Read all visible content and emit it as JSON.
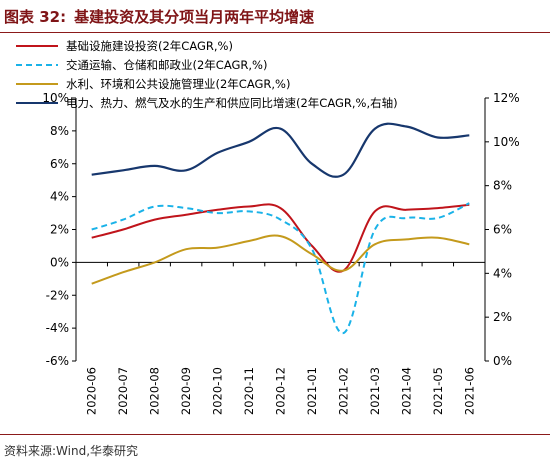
{
  "header": {
    "figure_no": "图表 32:",
    "title": "基建投资及其分项当月两年平均增速"
  },
  "source": "资料来源:Wind,华泰研究",
  "chart_data": {
    "type": "line",
    "categories": [
      "2020-06",
      "2020-07",
      "2020-08",
      "2020-09",
      "2020-10",
      "2020-11",
      "2020-12",
      "2021-01",
      "2021-02",
      "2021-03",
      "2021-04",
      "2021-05",
      "2021-06"
    ],
    "y_left": {
      "min": -6,
      "max": 10,
      "ticks": [
        "-6%",
        "-4%",
        "-2%",
        "0%",
        "2%",
        "4%",
        "6%",
        "8%",
        "10%"
      ]
    },
    "y_right": {
      "min": 0,
      "max": 12,
      "ticks": [
        "0%",
        "2%",
        "4%",
        "6%",
        "8%",
        "10%",
        "12%"
      ]
    },
    "grid": false,
    "legend_position": "top-left",
    "series": [
      {
        "name": "基础设施建设投资(2年CAGR,%)",
        "axis": "left",
        "color": "#c0141b",
        "dash": "",
        "values": [
          1.5,
          2.0,
          2.6,
          2.9,
          3.2,
          3.4,
          3.3,
          1.0,
          -0.5,
          3.1,
          3.2,
          3.3,
          3.5
        ]
      },
      {
        "name": "交通运输、仓储和邮政业(2年CAGR,%)",
        "axis": "left",
        "color": "#1ab2e8",
        "dash": "6,4",
        "values": [
          2.0,
          2.6,
          3.4,
          3.3,
          3.0,
          3.1,
          2.6,
          0.8,
          -4.3,
          2.0,
          2.7,
          2.7,
          3.6
        ]
      },
      {
        "name": "水利、环境和公共设施管理业(2年CAGR,%)",
        "axis": "left",
        "color": "#c49a1c",
        "dash": "",
        "values": [
          -1.3,
          -0.6,
          0.0,
          0.8,
          0.9,
          1.3,
          1.6,
          0.5,
          -0.5,
          1.1,
          1.4,
          1.5,
          1.1
        ]
      },
      {
        "name": "电力、热力、燃气及水的生产和供应同比增速(2年CAGR,%,右轴)",
        "axis": "right",
        "color": "#17376d",
        "dash": "",
        "values": [
          8.5,
          8.7,
          8.9,
          8.7,
          9.5,
          10.0,
          10.6,
          9.0,
          8.5,
          10.6,
          10.7,
          10.2,
          10.3
        ]
      }
    ]
  }
}
